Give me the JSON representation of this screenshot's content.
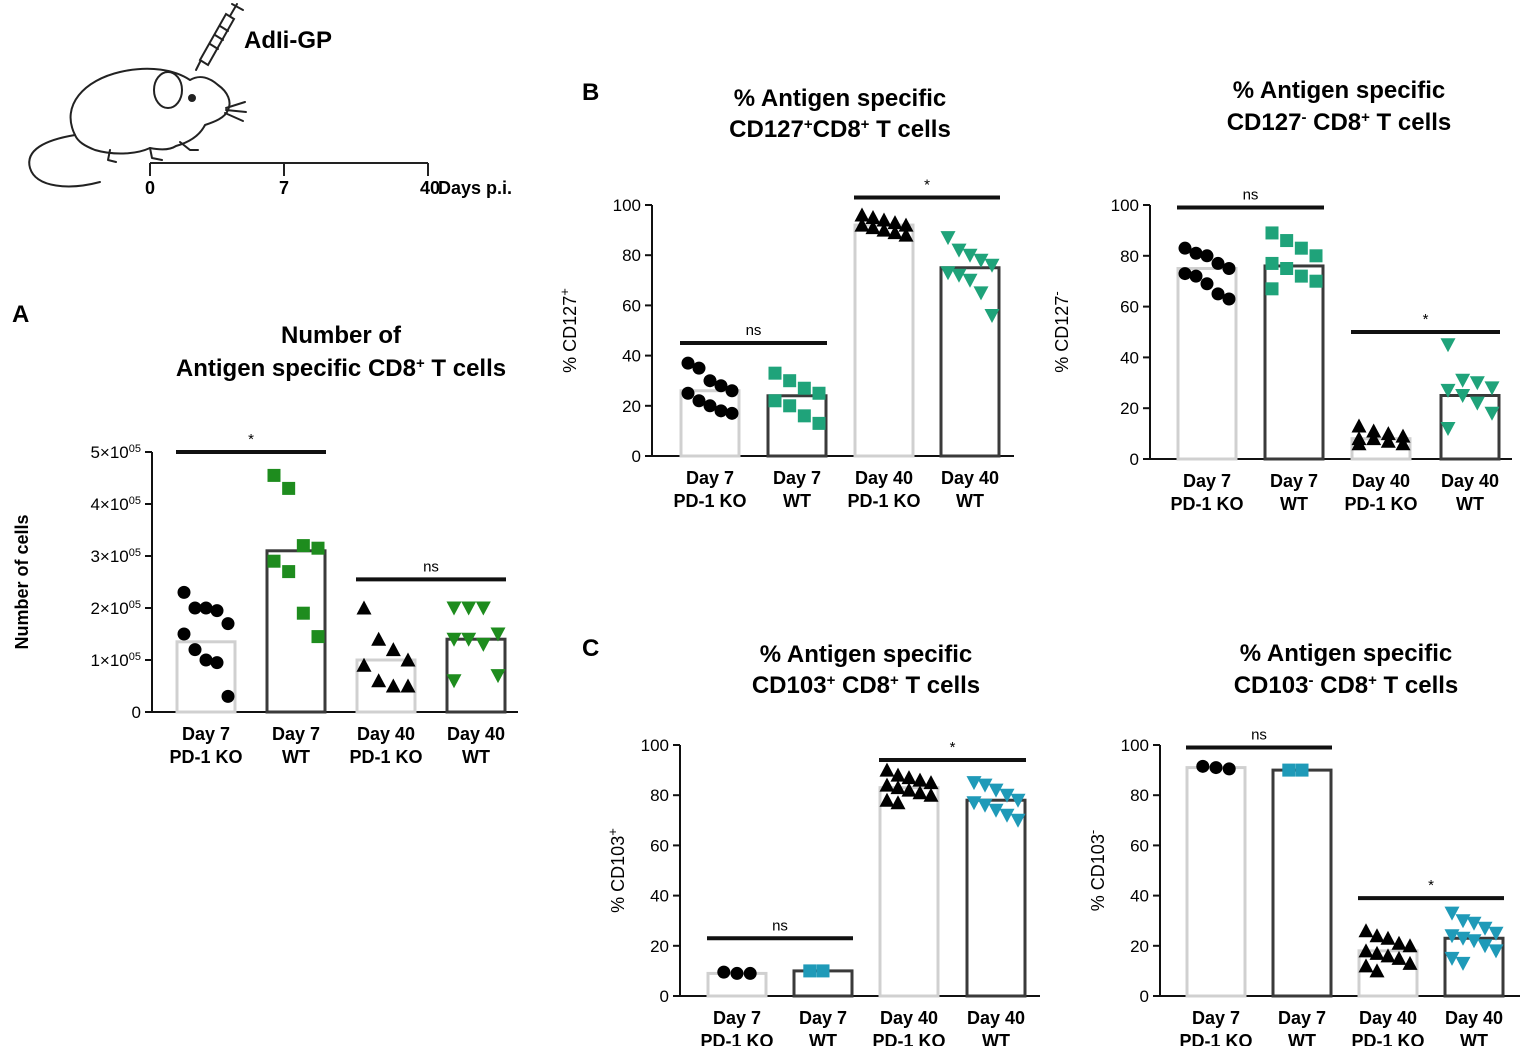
{
  "colors": {
    "black": "#000000",
    "green_dark": "#1e8c1e",
    "green_teal": "#1fa37a",
    "teal_blue": "#1f9ab8",
    "bar_light": "#d0d0d0",
    "bar_dark": "#3a3a3a"
  },
  "schematic": {
    "injection_label": "AdIi-GP",
    "icons": [
      "mouse-icon",
      "syringe-icon"
    ],
    "timeline_ticks": [
      "0",
      "7",
      "40"
    ],
    "timeline_unit": "Days p.i."
  },
  "panels": {
    "A": "A",
    "B": "B",
    "C": "C"
  },
  "chart_data": [
    {
      "id": "A",
      "type": "bar",
      "title_line1": "Number of",
      "title_line2": {
        "pre": "Antigen specific CD8",
        "sup": "+",
        "post": " T cells"
      },
      "ylabel": "Number of cells",
      "ylim": [
        0,
        500000
      ],
      "yticks": [
        0,
        100000,
        200000,
        300000,
        400000,
        500000
      ],
      "ytick_labels": [
        {
          "v": 0,
          "m": "0",
          "e": ""
        },
        {
          "v": 100000,
          "m": "1×10",
          "e": "05"
        },
        {
          "v": 200000,
          "m": "2×10",
          "e": "05"
        },
        {
          "v": 300000,
          "m": "3×10",
          "e": "05"
        },
        {
          "v": 400000,
          "m": "4×10",
          "e": "05"
        },
        {
          "v": 500000,
          "m": "5×10",
          "e": "05"
        }
      ],
      "categories": [
        {
          "l1": "Day 7",
          "l2": "PD-1 KO"
        },
        {
          "l1": "Day 7",
          "l2": "WT"
        },
        {
          "l1": "Day 40",
          "l2": "PD-1 KO"
        },
        {
          "l1": "Day 40",
          "l2": "WT"
        }
      ],
      "series": [
        {
          "name": "Day 7 PD-1 KO",
          "bar": 135000,
          "style": "light",
          "marker": "circle",
          "color": "#000000",
          "points": [
            230000,
            200000,
            200000,
            195000,
            170000,
            150000,
            120000,
            100000,
            95000,
            30000
          ]
        },
        {
          "name": "Day 7 WT",
          "bar": 310000,
          "style": "dark",
          "marker": "square",
          "color": "#1e8c1e",
          "points": [
            455000,
            430000,
            320000,
            315000,
            290000,
            270000,
            190000,
            145000
          ]
        },
        {
          "name": "Day 40 PD-1 KO",
          "bar": 100000,
          "style": "light",
          "marker": "triangle-up",
          "color": "#000000",
          "points": [
            200000,
            140000,
            120000,
            100000,
            90000,
            60000,
            50000,
            50000
          ]
        },
        {
          "name": "Day 40 WT",
          "bar": 140000,
          "style": "dark",
          "marker": "triangle-down",
          "color": "#1e8c1e",
          "points": [
            200000,
            200000,
            200000,
            150000,
            140000,
            140000,
            130000,
            70000,
            60000
          ]
        }
      ],
      "annotations": [
        {
          "from": 0,
          "to": 1,
          "y": 500000,
          "label": "*"
        },
        {
          "from": 2,
          "to": 3,
          "y": 255000,
          "label": "ns"
        }
      ]
    },
    {
      "id": "B-left",
      "type": "bar",
      "title_line1": "% Antigen specific",
      "title_line2": {
        "pre": "CD127",
        "sup": "+",
        "post": "CD8",
        "sup2": "+",
        "post2": " T cells"
      },
      "ylabel": "% CD127",
      "ylabel_sup": "+",
      "ylim": [
        0,
        100
      ],
      "yticks": [
        0,
        20,
        40,
        60,
        80,
        100
      ],
      "categories": [
        {
          "l1": "Day 7",
          "l2": "PD-1 KO"
        },
        {
          "l1": "Day 7",
          "l2": "WT"
        },
        {
          "l1": "Day 40",
          "l2": "PD-1 KO"
        },
        {
          "l1": "Day 40",
          "l2": "WT"
        }
      ],
      "series": [
        {
          "name": "Day 7 PD-1 KO",
          "bar": 26,
          "style": "light",
          "marker": "circle",
          "color": "#000000",
          "points": [
            37,
            35,
            30,
            28,
            26,
            25,
            22,
            20,
            18,
            17
          ]
        },
        {
          "name": "Day 7 WT",
          "bar": 24,
          "style": "dark",
          "marker": "square",
          "color": "#1fa37a",
          "points": [
            33,
            30,
            27,
            25,
            22,
            20,
            16,
            13
          ]
        },
        {
          "name": "Day 40 PD-1 KO",
          "bar": 92,
          "style": "light",
          "marker": "triangle-up",
          "color": "#000000",
          "points": [
            96,
            95,
            94,
            93,
            92,
            92,
            91,
            90,
            89,
            88
          ]
        },
        {
          "name": "Day 40 WT",
          "bar": 75,
          "style": "dark",
          "marker": "triangle-down",
          "color": "#1fa37a",
          "points": [
            87,
            82,
            80,
            78,
            76,
            73,
            72,
            70,
            65,
            56
          ]
        }
      ],
      "annotations": [
        {
          "from": 0,
          "to": 1,
          "y": 45,
          "label": "ns"
        },
        {
          "from": 2,
          "to": 3,
          "y": 103,
          "label": "*"
        }
      ]
    },
    {
      "id": "B-right",
      "type": "bar",
      "title_line1": "% Antigen specific",
      "title_line2": {
        "pre": "CD127",
        "sup": "-",
        "post": " CD8",
        "sup2": "+",
        "post2": " T cells"
      },
      "ylabel": "% CD127",
      "ylabel_sup": "-",
      "ylim": [
        0,
        100
      ],
      "yticks": [
        0,
        20,
        40,
        60,
        80,
        100
      ],
      "categories": [
        {
          "l1": "Day 7",
          "l2": "PD-1 KO"
        },
        {
          "l1": "Day 7",
          "l2": "WT"
        },
        {
          "l1": "Day 40",
          "l2": "PD-1 KO"
        },
        {
          "l1": "Day 40",
          "l2": "WT"
        }
      ],
      "series": [
        {
          "name": "Day 7 PD-1 KO",
          "bar": 75,
          "style": "light",
          "marker": "circle",
          "color": "#000000",
          "points": [
            83,
            81,
            80,
            77,
            75,
            73,
            72,
            69,
            65,
            63
          ]
        },
        {
          "name": "Day 7 WT",
          "bar": 76,
          "style": "dark",
          "marker": "square",
          "color": "#1fa37a",
          "points": [
            89,
            86,
            83,
            80,
            77,
            75,
            72,
            70,
            67
          ]
        },
        {
          "name": "Day 40 PD-1 KO",
          "bar": 8,
          "style": "light",
          "marker": "triangle-up",
          "color": "#000000",
          "points": [
            13,
            11,
            10,
            9,
            8,
            8,
            7,
            6,
            6
          ]
        },
        {
          "name": "Day 40 WT",
          "bar": 25,
          "style": "dark",
          "marker": "triangle-down",
          "color": "#1fa37a",
          "points": [
            45,
            31,
            30,
            28,
            27,
            25,
            22,
            18,
            12
          ]
        }
      ],
      "annotations": [
        {
          "from": 0,
          "to": 1,
          "y": 99,
          "label": "ns"
        },
        {
          "from": 2,
          "to": 3,
          "y": 50,
          "label": "*"
        }
      ]
    },
    {
      "id": "C-left",
      "type": "bar",
      "title_line1": "% Antigen specific",
      "title_line2": {
        "pre": "CD103",
        "sup": "+",
        "post": " CD8",
        "sup2": "+",
        "post2": " T cells"
      },
      "ylabel": "% CD103",
      "ylabel_sup": "+",
      "ylim": [
        0,
        100
      ],
      "yticks": [
        0,
        20,
        40,
        60,
        80,
        100
      ],
      "categories": [
        {
          "l1": "Day 7",
          "l2": "PD-1 KO"
        },
        {
          "l1": "Day 7",
          "l2": "WT"
        },
        {
          "l1": "Day 40",
          "l2": "PD-1 KO"
        },
        {
          "l1": "Day 40",
          "l2": "WT"
        }
      ],
      "series": [
        {
          "name": "Day 7 PD-1 KO",
          "bar": 9,
          "style": "light",
          "marker": "circle",
          "color": "#000000",
          "points": [
            9.5,
            9,
            9
          ]
        },
        {
          "name": "Day 7 WT",
          "bar": 10,
          "style": "dark",
          "marker": "square",
          "color": "#1f9ab8",
          "points": [
            10,
            10
          ]
        },
        {
          "name": "Day 40 PD-1 KO",
          "bar": 83,
          "style": "light",
          "marker": "triangle-up",
          "color": "#000000",
          "points": [
            90,
            88,
            87,
            86,
            85,
            84,
            83,
            82,
            81,
            80,
            78,
            77
          ]
        },
        {
          "name": "Day 40 WT",
          "bar": 78,
          "style": "dark",
          "marker": "triangle-down",
          "color": "#1f9ab8",
          "points": [
            85,
            84,
            82,
            80,
            78,
            77,
            76,
            74,
            72,
            70
          ]
        }
      ],
      "annotations": [
        {
          "from": 0,
          "to": 1,
          "y": 23,
          "label": "ns"
        },
        {
          "from": 2,
          "to": 3,
          "y": 94,
          "label": "*"
        }
      ]
    },
    {
      "id": "C-right",
      "type": "bar",
      "title_line1": "% Antigen specific",
      "title_line2": {
        "pre": "CD103",
        "sup": "-",
        "post": " CD8",
        "sup2": "+",
        "post2": " T cells"
      },
      "ylabel": "% CD103",
      "ylabel_sup": "-",
      "ylim": [
        0,
        100
      ],
      "yticks": [
        0,
        20,
        40,
        60,
        80,
        100
      ],
      "categories": [
        {
          "l1": "Day 7",
          "l2": "PD-1 KO"
        },
        {
          "l1": "Day 7",
          "l2": "WT"
        },
        {
          "l1": "Day 40",
          "l2": "PD-1 KO"
        },
        {
          "l1": "Day 40",
          "l2": "WT"
        }
      ],
      "series": [
        {
          "name": "Day 7 PD-1 KO",
          "bar": 91,
          "style": "light",
          "marker": "circle",
          "color": "#000000",
          "points": [
            91.5,
            91,
            90.5
          ]
        },
        {
          "name": "Day 7 WT",
          "bar": 90,
          "style": "dark",
          "marker": "square",
          "color": "#1f9ab8",
          "points": [
            90,
            90
          ]
        },
        {
          "name": "Day 40 PD-1 KO",
          "bar": 18,
          "style": "light",
          "marker": "triangle-up",
          "color": "#000000",
          "points": [
            26,
            24,
            23,
            21,
            20,
            18,
            17,
            16,
            15,
            13,
            12,
            10
          ]
        },
        {
          "name": "Day 40 WT",
          "bar": 23,
          "style": "dark",
          "marker": "triangle-down",
          "color": "#1f9ab8",
          "points": [
            33,
            30,
            29,
            27,
            25,
            24,
            23,
            22,
            20,
            18,
            15,
            13
          ]
        }
      ],
      "annotations": [
        {
          "from": 0,
          "to": 1,
          "y": 99,
          "label": "ns"
        },
        {
          "from": 2,
          "to": 3,
          "y": 39,
          "label": "*"
        }
      ]
    }
  ]
}
